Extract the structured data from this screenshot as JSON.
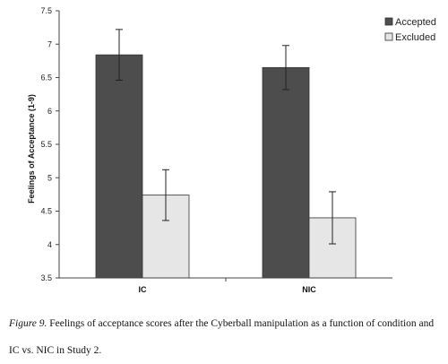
{
  "chart_data": {
    "type": "bar",
    "categories": [
      "IC",
      "NIC"
    ],
    "series": [
      {
        "name": "Accepted",
        "color": "#4d4d4d",
        "values": [
          6.84,
          6.65
        ],
        "error": [
          0.38,
          0.33
        ]
      },
      {
        "name": "Excluded",
        "color": "#e6e6e6",
        "values": [
          4.74,
          4.4
        ],
        "error": [
          0.38,
          0.39
        ]
      }
    ],
    "xlabel": "",
    "ylabel": "Feelings of Acceptance (1-9)",
    "ylim": [
      3.5,
      7.5
    ],
    "yticks": [
      "3.5",
      "4",
      "4.5",
      "5",
      "5.5",
      "6",
      "6.5",
      "7",
      "7.5"
    ],
    "grid": false,
    "legend_position": "top-right"
  },
  "caption": {
    "label": "Figure 9.",
    "text": " Feelings of acceptance scores after the Cyberball manipulation as a function of condition and IC vs. NIC in Study 2."
  }
}
